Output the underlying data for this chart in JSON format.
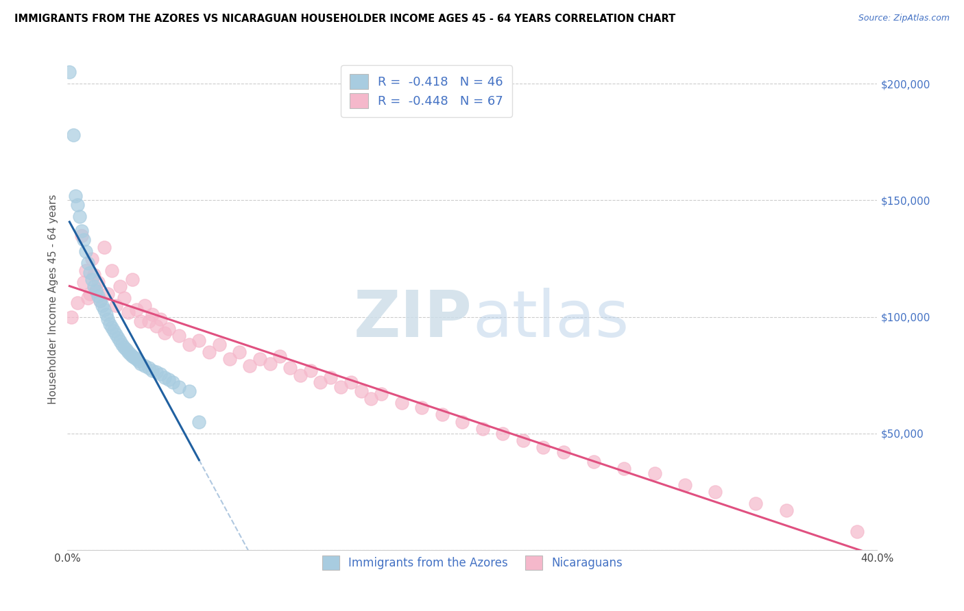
{
  "title": "IMMIGRANTS FROM THE AZORES VS NICARAGUAN HOUSEHOLDER INCOME AGES 45 - 64 YEARS CORRELATION CHART",
  "source": "Source: ZipAtlas.com",
  "ylabel": "Householder Income Ages 45 - 64 years",
  "xlim": [
    0.0,
    0.4
  ],
  "ylim": [
    0,
    215000
  ],
  "yticks": [
    0,
    50000,
    100000,
    150000,
    200000
  ],
  "ytick_labels": [
    "",
    "$50,000",
    "$100,000",
    "$150,000",
    "$200,000"
  ],
  "xticks": [
    0.0,
    0.05,
    0.1,
    0.15,
    0.2,
    0.25,
    0.3,
    0.35,
    0.4
  ],
  "xtick_labels": [
    "0.0%",
    "",
    "",
    "",
    "",
    "",
    "",
    "",
    "40.0%"
  ],
  "legend_blue_r_val": "-0.418",
  "legend_blue_n_val": "46",
  "legend_pink_r_val": "-0.448",
  "legend_pink_n_val": "67",
  "legend1": "Immigrants from the Azores",
  "legend2": "Nicaraguans",
  "blue_color": "#a8cce0",
  "pink_color": "#f5b8cb",
  "blue_line_color": "#2060a0",
  "pink_line_color": "#e05080",
  "dash_color": "#b0c8e0",
  "text_blue": "#4472c4",
  "blue_scatter_x": [
    0.001,
    0.003,
    0.004,
    0.005,
    0.006,
    0.007,
    0.008,
    0.009,
    0.01,
    0.011,
    0.012,
    0.013,
    0.014,
    0.015,
    0.016,
    0.017,
    0.018,
    0.019,
    0.02,
    0.021,
    0.022,
    0.023,
    0.024,
    0.025,
    0.026,
    0.027,
    0.028,
    0.029,
    0.03,
    0.031,
    0.032,
    0.033,
    0.034,
    0.035,
    0.036,
    0.038,
    0.04,
    0.042,
    0.044,
    0.046,
    0.048,
    0.05,
    0.052,
    0.055,
    0.06,
    0.065
  ],
  "blue_scatter_y": [
    205000,
    178000,
    152000,
    148000,
    143000,
    137000,
    133000,
    128000,
    123000,
    119000,
    116000,
    113000,
    111000,
    109000,
    107000,
    105000,
    103000,
    101000,
    99000,
    97000,
    95500,
    94000,
    92500,
    91000,
    89500,
    88000,
    87000,
    86000,
    85000,
    84000,
    83000,
    82500,
    82000,
    81000,
    80000,
    79000,
    78000,
    77000,
    76500,
    75500,
    74000,
    73000,
    72000,
    70000,
    68000,
    55000
  ],
  "pink_scatter_x": [
    0.002,
    0.005,
    0.007,
    0.008,
    0.009,
    0.01,
    0.011,
    0.012,
    0.013,
    0.014,
    0.015,
    0.016,
    0.018,
    0.02,
    0.022,
    0.024,
    0.026,
    0.028,
    0.03,
    0.032,
    0.034,
    0.036,
    0.038,
    0.04,
    0.042,
    0.044,
    0.046,
    0.048,
    0.05,
    0.055,
    0.06,
    0.065,
    0.07,
    0.075,
    0.08,
    0.085,
    0.09,
    0.095,
    0.1,
    0.105,
    0.11,
    0.115,
    0.12,
    0.125,
    0.13,
    0.135,
    0.14,
    0.145,
    0.15,
    0.155,
    0.165,
    0.175,
    0.185,
    0.195,
    0.205,
    0.215,
    0.225,
    0.235,
    0.245,
    0.26,
    0.275,
    0.29,
    0.305,
    0.32,
    0.34,
    0.355,
    0.39
  ],
  "pink_scatter_y": [
    100000,
    106000,
    135000,
    115000,
    120000,
    108000,
    110000,
    125000,
    118000,
    112000,
    115000,
    107000,
    130000,
    110000,
    120000,
    105000,
    113000,
    108000,
    102000,
    116000,
    103000,
    98000,
    105000,
    98000,
    101000,
    96000,
    99000,
    93000,
    95000,
    92000,
    88000,
    90000,
    85000,
    88000,
    82000,
    85000,
    79000,
    82000,
    80000,
    83000,
    78000,
    75000,
    77000,
    72000,
    74000,
    70000,
    72000,
    68000,
    65000,
    67000,
    63000,
    61000,
    58000,
    55000,
    52000,
    50000,
    47000,
    44000,
    42000,
    38000,
    35000,
    33000,
    28000,
    25000,
    20000,
    17000,
    8000
  ]
}
